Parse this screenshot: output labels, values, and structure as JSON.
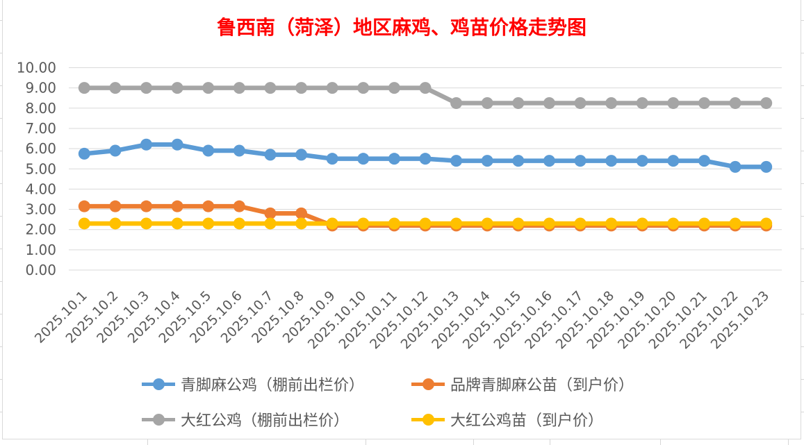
{
  "chart_data": {
    "type": "line",
    "title": "鲁西南（菏泽）地区麻鸡、鸡苗价格走势图",
    "title_color": "#FF0000",
    "categories": [
      "2025.10.1",
      "2025.10.2",
      "2025.10.3",
      "2025.10.4",
      "2025.10.5",
      "2025.10.6",
      "2025.10.7",
      "2025.10.8",
      "2025.10.9",
      "2025.10.10",
      "2025.10.11",
      "2025.10.12",
      "2025.10.13",
      "2025.10.14",
      "2025.10.15",
      "2025.10.16",
      "2025.10.17",
      "2025.10.18",
      "2025.10.19",
      "2025.10.20",
      "2025.10.21",
      "2025.10.22",
      "2025.10.23"
    ],
    "series": [
      {
        "name": "青脚麻公鸡（棚前出栏价）",
        "color": "#5B9BD5",
        "values": [
          5.75,
          5.9,
          6.2,
          6.2,
          5.9,
          5.9,
          5.7,
          5.7,
          5.5,
          5.5,
          5.5,
          5.5,
          5.4,
          5.4,
          5.4,
          5.4,
          5.4,
          5.4,
          5.4,
          5.4,
          5.4,
          5.1,
          5.1
        ]
      },
      {
        "name": "品牌青脚麻公苗（到户价）",
        "color": "#ED7D31",
        "values": [
          3.15,
          3.15,
          3.15,
          3.15,
          3.15,
          3.15,
          2.8,
          2.8,
          2.2,
          2.2,
          2.2,
          2.2,
          2.2,
          2.2,
          2.2,
          2.2,
          2.2,
          2.2,
          2.2,
          2.2,
          2.2,
          2.2,
          2.2
        ]
      },
      {
        "name": "大红公鸡（棚前出栏价）",
        "color": "#A5A5A5",
        "values": [
          9.0,
          9.0,
          9.0,
          9.0,
          9.0,
          9.0,
          9.0,
          9.0,
          9.0,
          9.0,
          9.0,
          9.0,
          8.25,
          8.25,
          8.25,
          8.25,
          8.25,
          8.25,
          8.25,
          8.25,
          8.25,
          8.25,
          8.25
        ]
      },
      {
        "name": "大红公鸡苗（到户价）",
        "color": "#FFC000",
        "values": [
          2.3,
          2.3,
          2.3,
          2.3,
          2.3,
          2.3,
          2.3,
          2.3,
          2.3,
          2.3,
          2.3,
          2.3,
          2.3,
          2.3,
          2.3,
          2.3,
          2.3,
          2.3,
          2.3,
          2.3,
          2.3,
          2.3,
          2.3
        ]
      }
    ],
    "ylim": [
      0,
      10
    ],
    "y_ticks": [
      "0.00",
      "1.00",
      "2.00",
      "3.00",
      "4.00",
      "5.00",
      "6.00",
      "7.00",
      "8.00",
      "9.00",
      "10.00"
    ],
    "grid": true,
    "gridline_color": "#D9D9D9",
    "axis_text_color": "#595959",
    "legend_position": "bottom"
  }
}
